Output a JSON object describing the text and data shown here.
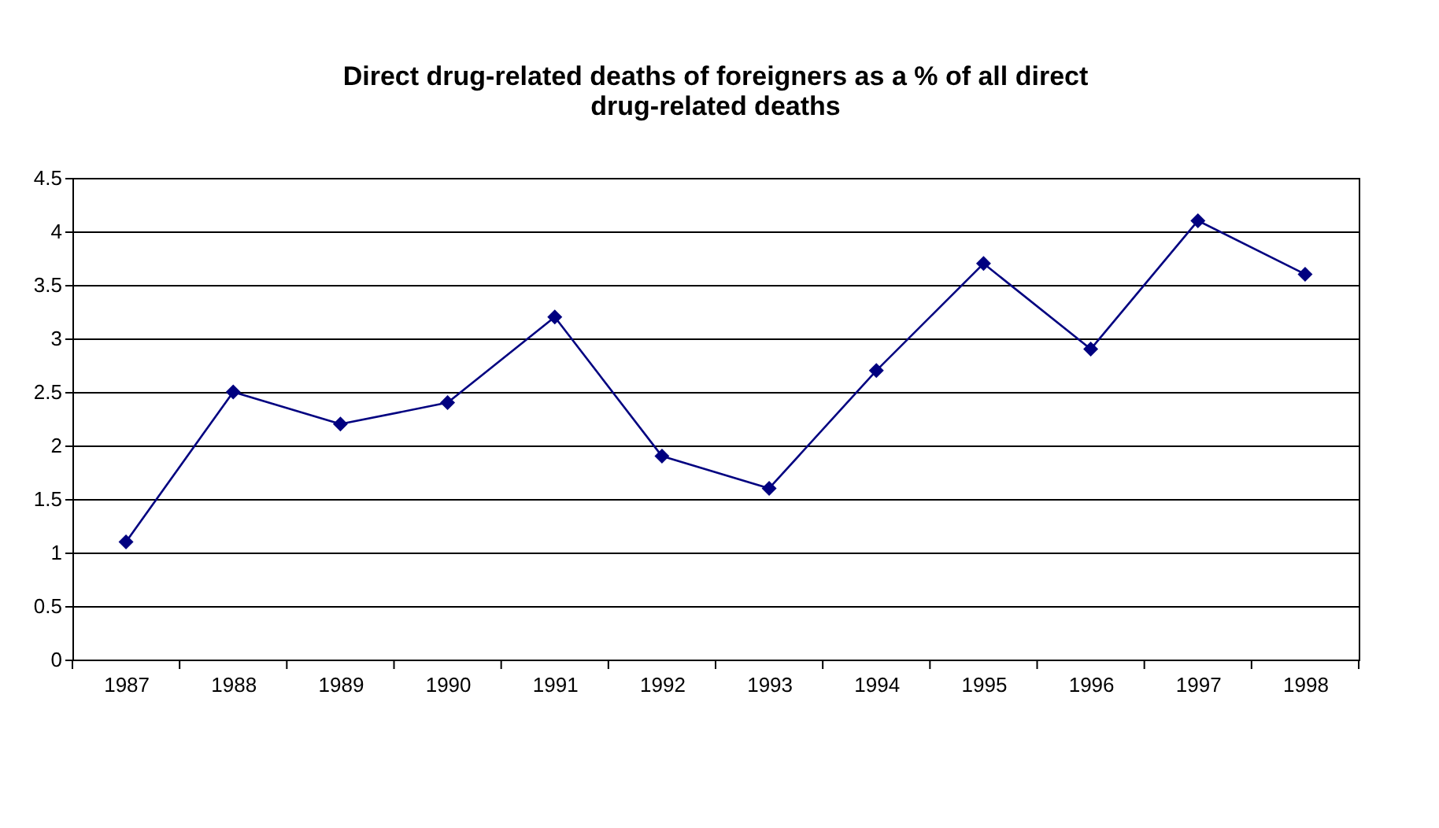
{
  "chart_data": {
    "type": "line",
    "title": "Direct drug-related deaths of foreigners as a % of all direct drug-related deaths",
    "categories": [
      "1987",
      "1988",
      "1989",
      "1990",
      "1991",
      "1992",
      "1993",
      "1994",
      "1995",
      "1996",
      "1997",
      "1998"
    ],
    "series": [
      {
        "color": "#000080",
        "values": [
          1.1,
          2.5,
          2.2,
          2.4,
          3.2,
          1.9,
          1.6,
          2.7,
          3.7,
          2.9,
          4.1,
          3.6
        ]
      }
    ],
    "ylim": [
      0,
      4.5
    ],
    "yticks": [
      0,
      0.5,
      1,
      1.5,
      2,
      2.5,
      3,
      3.5,
      4,
      4.5
    ],
    "grid": "y",
    "marker": "diamond",
    "line_style": "solid"
  }
}
